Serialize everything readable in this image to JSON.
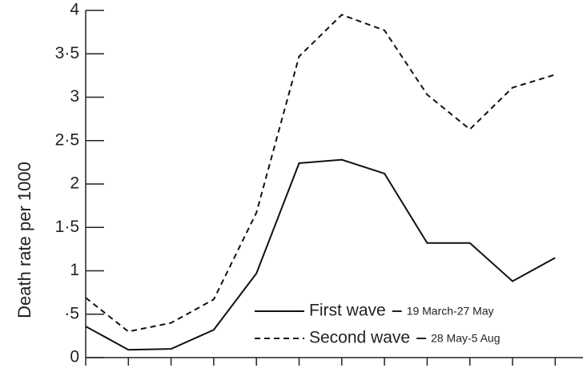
{
  "chart_data": {
    "type": "line",
    "y_label": "Death rate per 1000",
    "categories": [
      null,
      null,
      null,
      null,
      null,
      null,
      null,
      null,
      null,
      null,
      null,
      null
    ],
    "series": [
      {
        "name": "First wave",
        "period": "19 March-27 May",
        "color": "#111111",
        "dash": "solid",
        "values": [
          0.36,
          0.09,
          0.1,
          0.32,
          0.97,
          2.24,
          2.28,
          2.12,
          1.32,
          1.32,
          0.88,
          1.15
        ]
      },
      {
        "name": "Second wave",
        "period": "28 May-5 Aug",
        "color": "#111111",
        "dash": "dashed",
        "values": [
          0.69,
          0.3,
          0.4,
          0.67,
          1.67,
          3.47,
          3.95,
          3.77,
          3.03,
          2.63,
          3.11,
          3.26
        ]
      }
    ],
    "ylim": [
      0,
      4
    ],
    "yticks": [
      0,
      {
        "value": 0.5,
        "label": "·5"
      },
      1,
      {
        "value": 1.5,
        "label": "1·5"
      },
      2,
      {
        "value": 2.5,
        "label": "2·5"
      },
      3,
      {
        "value": 3.5,
        "label": "3·5"
      },
      4
    ],
    "grid": false
  }
}
